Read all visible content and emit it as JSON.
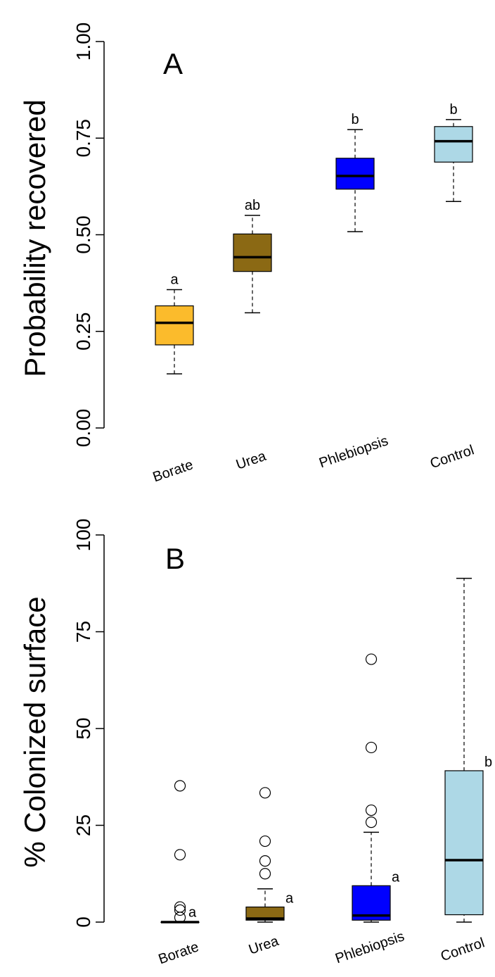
{
  "chart_data": [
    {
      "type": "box",
      "panel_label": "A",
      "ylabel": "Probability recovered",
      "ylim": [
        0,
        1
      ],
      "yticks": [
        "0.00",
        "0.25",
        "0.50",
        "0.75",
        "1.00"
      ],
      "ytick_values": [
        0,
        0.25,
        0.5,
        0.75,
        1.0
      ],
      "categories": [
        "Borate",
        "Urea",
        "Phlebiopsis",
        "Control"
      ],
      "boxes": [
        {
          "category": "Borate",
          "min": 0.14,
          "q1": 0.215,
          "median": 0.272,
          "q3": 0.316,
          "max": 0.358,
          "color": "#FBBB2C",
          "letter": "a",
          "outliers": []
        },
        {
          "category": "Urea",
          "min": 0.298,
          "q1": 0.405,
          "median": 0.442,
          "q3": 0.502,
          "max": 0.55,
          "color": "#8B6914",
          "letter": "ab",
          "outliers": []
        },
        {
          "category": "Phlebiopsis",
          "min": 0.508,
          "q1": 0.618,
          "median": 0.652,
          "q3": 0.698,
          "max": 0.772,
          "color": "#0000FF",
          "letter": "b",
          "outliers": []
        },
        {
          "category": "Control",
          "min": 0.586,
          "q1": 0.688,
          "median": 0.742,
          "q3": 0.78,
          "max": 0.798,
          "color": "#ADD8E6",
          "letter": "b",
          "outliers": []
        }
      ]
    },
    {
      "type": "box",
      "panel_label": "B",
      "ylabel": "% Colonized surface",
      "ylim": [
        0,
        100
      ],
      "yticks": [
        "0",
        "25",
        "50",
        "75",
        "100"
      ],
      "ytick_values": [
        0,
        25,
        50,
        75,
        100
      ],
      "categories": [
        "Borate",
        "Urea",
        "Phlebiopsis",
        "Control"
      ],
      "boxes": [
        {
          "category": "Borate",
          "min": 0,
          "q1": 0,
          "median": 0,
          "q3": 0,
          "max": 0,
          "color": "#FBBB2C",
          "letter": "a",
          "outliers": [
            35.2,
            17.4,
            3.9,
            3.1,
            1.2
          ]
        },
        {
          "category": "Urea",
          "min": 0,
          "q1": 0.5,
          "median": 0.9,
          "q3": 3.9,
          "max": 8.6,
          "color": "#8B6914",
          "letter": "a",
          "outliers": [
            33.4,
            20.9,
            15.8,
            12.5
          ]
        },
        {
          "category": "Phlebiopsis",
          "min": 0,
          "q1": 0.5,
          "median": 1.7,
          "q3": 9.4,
          "max": 23.2,
          "color": "#0000FF",
          "letter": "a",
          "outliers": [
            67.9,
            45.1,
            28.9,
            25.8
          ]
        },
        {
          "category": "Control",
          "min": 0,
          "q1": 1.9,
          "median": 16.0,
          "q3": 39.1,
          "max": 88.8,
          "color": "#ADD8E6",
          "letter": "b",
          "outliers": []
        }
      ]
    }
  ]
}
